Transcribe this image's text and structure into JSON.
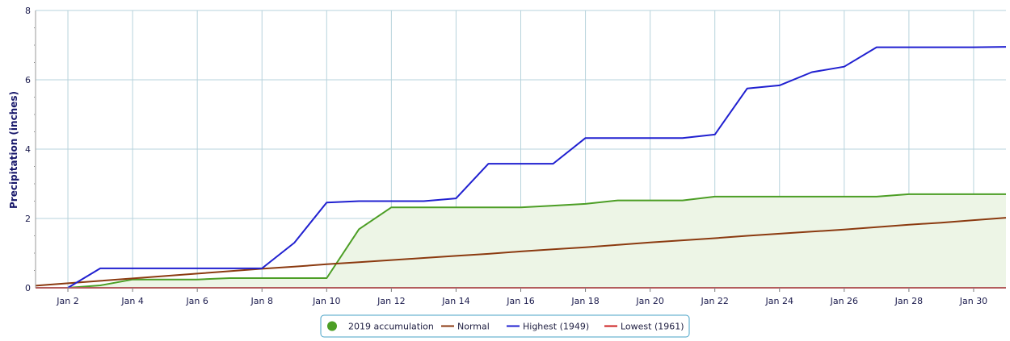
{
  "chart_data": {
    "type": "line",
    "ylabel": "Precipitation (inches)",
    "xlabel": "",
    "ylim": [
      0,
      8
    ],
    "yticks": [
      0,
      2,
      4,
      6,
      8
    ],
    "xlim": [
      1,
      31
    ],
    "grid": true,
    "legend_position": "bottom-center",
    "x": [
      1,
      2,
      3,
      4,
      5,
      6,
      7,
      8,
      9,
      10,
      11,
      12,
      13,
      14,
      15,
      16,
      17,
      18,
      19,
      20,
      21,
      22,
      23,
      24,
      25,
      26,
      27,
      28,
      29,
      30,
      31
    ],
    "x_tick_labels": [
      {
        "day": 2,
        "label": "Jan 2"
      },
      {
        "day": 4,
        "label": "Jan 4"
      },
      {
        "day": 6,
        "label": "Jan 6"
      },
      {
        "day": 8,
        "label": "Jan 8"
      },
      {
        "day": 10,
        "label": "Jan 10"
      },
      {
        "day": 12,
        "label": "Jan 12"
      },
      {
        "day": 14,
        "label": "Jan 14"
      },
      {
        "day": 16,
        "label": "Jan 16"
      },
      {
        "day": 18,
        "label": "Jan 18"
      },
      {
        "day": 20,
        "label": "Jan 20"
      },
      {
        "day": 22,
        "label": "Jan 22"
      },
      {
        "day": 24,
        "label": "Jan 24"
      },
      {
        "day": 26,
        "label": "Jan 26"
      },
      {
        "day": 28,
        "label": "Jan 28"
      },
      {
        "day": 30,
        "label": "Jan 30"
      }
    ],
    "series": [
      {
        "name": "2019 accumulation",
        "color": "#4c9e25",
        "fill": "#edf5e6",
        "marker": "circle",
        "x": [
          2,
          3,
          4,
          5,
          6,
          7,
          8,
          9,
          10,
          11,
          12,
          13,
          14,
          15,
          16,
          17,
          18,
          19,
          20,
          21,
          22,
          23,
          24,
          25,
          26,
          27,
          28,
          29,
          30,
          31
        ],
        "values": [
          0.0,
          0.07,
          0.24,
          0.24,
          0.24,
          0.28,
          0.28,
          0.28,
          0.28,
          1.69,
          2.32,
          2.32,
          2.32,
          2.32,
          2.32,
          2.37,
          2.42,
          2.52,
          2.52,
          2.52,
          2.63,
          2.63,
          2.63,
          2.63,
          2.63,
          2.63,
          2.7,
          2.7,
          2.7,
          2.7
        ]
      },
      {
        "name": "Normal",
        "color": "#8b3a10",
        "values": [
          0.06,
          0.13,
          0.2,
          0.27,
          0.34,
          0.41,
          0.48,
          0.55,
          0.61,
          0.68,
          0.74,
          0.8,
          0.86,
          0.92,
          0.98,
          1.05,
          1.11,
          1.17,
          1.24,
          1.31,
          1.37,
          1.43,
          1.5,
          1.56,
          1.62,
          1.68,
          1.75,
          1.82,
          1.88,
          1.95,
          2.02
        ]
      },
      {
        "name": "Highest (1949)",
        "color": "#2020d0",
        "x": [
          2,
          3,
          4,
          5,
          6,
          7,
          8,
          9,
          10,
          11,
          12,
          13,
          14,
          15,
          16,
          17,
          18,
          19,
          20,
          21,
          22,
          23,
          24,
          25,
          26,
          27,
          28,
          29,
          30,
          31
        ],
        "values": [
          0.0,
          0.56,
          0.56,
          0.56,
          0.56,
          0.56,
          0.56,
          1.3,
          2.46,
          2.5,
          2.5,
          2.5,
          2.58,
          3.58,
          3.58,
          3.58,
          4.32,
          4.32,
          4.32,
          4.32,
          4.42,
          5.75,
          5.84,
          6.22,
          6.38,
          6.94,
          6.94,
          6.94,
          6.94,
          6.95
        ]
      },
      {
        "name": "Lowest (1961)",
        "color": "#cc2020",
        "values": [
          0,
          0,
          0,
          0,
          0,
          0,
          0,
          0,
          0,
          0,
          0,
          0,
          0,
          0,
          0,
          0,
          0,
          0,
          0,
          0,
          0,
          0,
          0,
          0,
          0,
          0,
          0,
          0,
          0,
          0,
          0
        ]
      }
    ]
  }
}
